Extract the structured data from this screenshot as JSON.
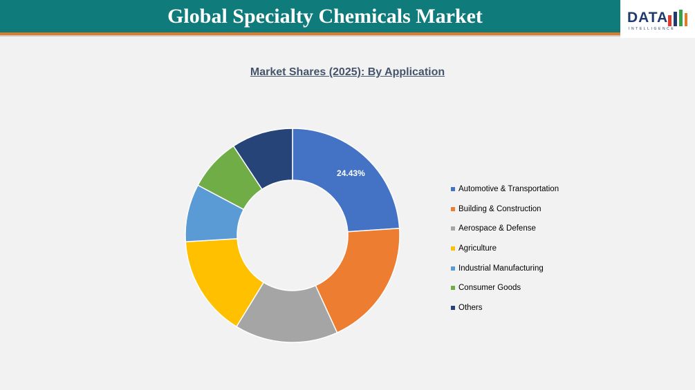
{
  "header": {
    "title": "Global Specialty Chemicals Market",
    "logo_text": "DATA",
    "logo_subtext": "INTELLIGENCE"
  },
  "colors": {
    "header_bg": "#0f7b7b",
    "header_accent": "#e07b2a",
    "logo_navy": "#1f3b6e"
  },
  "chart_data": {
    "type": "pie",
    "variant": "donut",
    "title": "Market Shares (2025): By Application",
    "categories": [
      "Automotive & Transportation",
      "Building & Construction",
      "Aerospace & Defense",
      "Agriculture",
      "Industrial Manufacturing",
      "Consumer Goods",
      "Others"
    ],
    "values": [
      24.43,
      19.6,
      15.9,
      15.6,
      8.9,
      8.1,
      9.47
    ],
    "colors": [
      "#4472c4",
      "#ed7d31",
      "#a5a5a5",
      "#ffc000",
      "#5b9bd5",
      "#70ad47",
      "#264478"
    ],
    "data_labels": [
      "24.43%",
      "",
      "",
      "",
      "",
      "",
      ""
    ],
    "legend_position": "right"
  }
}
